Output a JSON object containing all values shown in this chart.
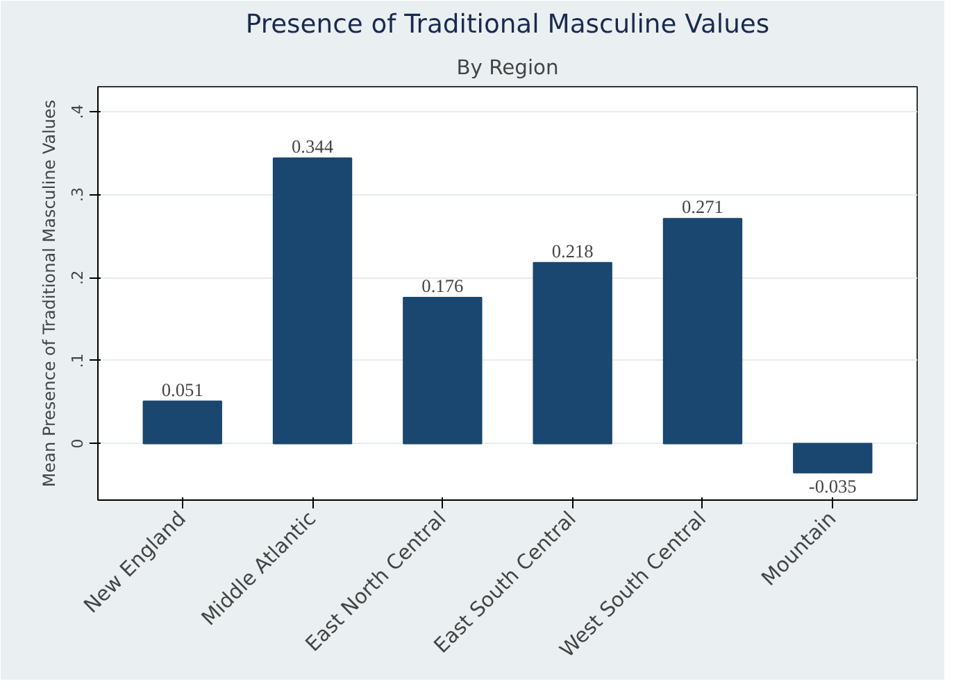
{
  "chart_data": {
    "type": "bar",
    "title": "Presence of Traditional Masculine Values",
    "subtitle": "By Region",
    "ylabel": "Mean Presence of Traditional Masculine Values",
    "categories": [
      "New England",
      "Middle Atlantic",
      "East North Central",
      "East South Central",
      "West South Central",
      "Mountain"
    ],
    "values": [
      0.051,
      0.344,
      0.176,
      0.218,
      0.271,
      -0.035
    ],
    "color": "#1a476f",
    "data_labels": true,
    "ylim": [
      -0.068,
      0.43
    ],
    "yticks": [
      {
        "value": 0,
        "label": "0"
      },
      {
        "value": 0.1,
        "label": ".1"
      },
      {
        "value": 0.2,
        "label": ".2"
      },
      {
        "value": 0.3,
        "label": ".3"
      },
      {
        "value": 0.4,
        "label": ".4"
      }
    ],
    "grid": "y"
  }
}
